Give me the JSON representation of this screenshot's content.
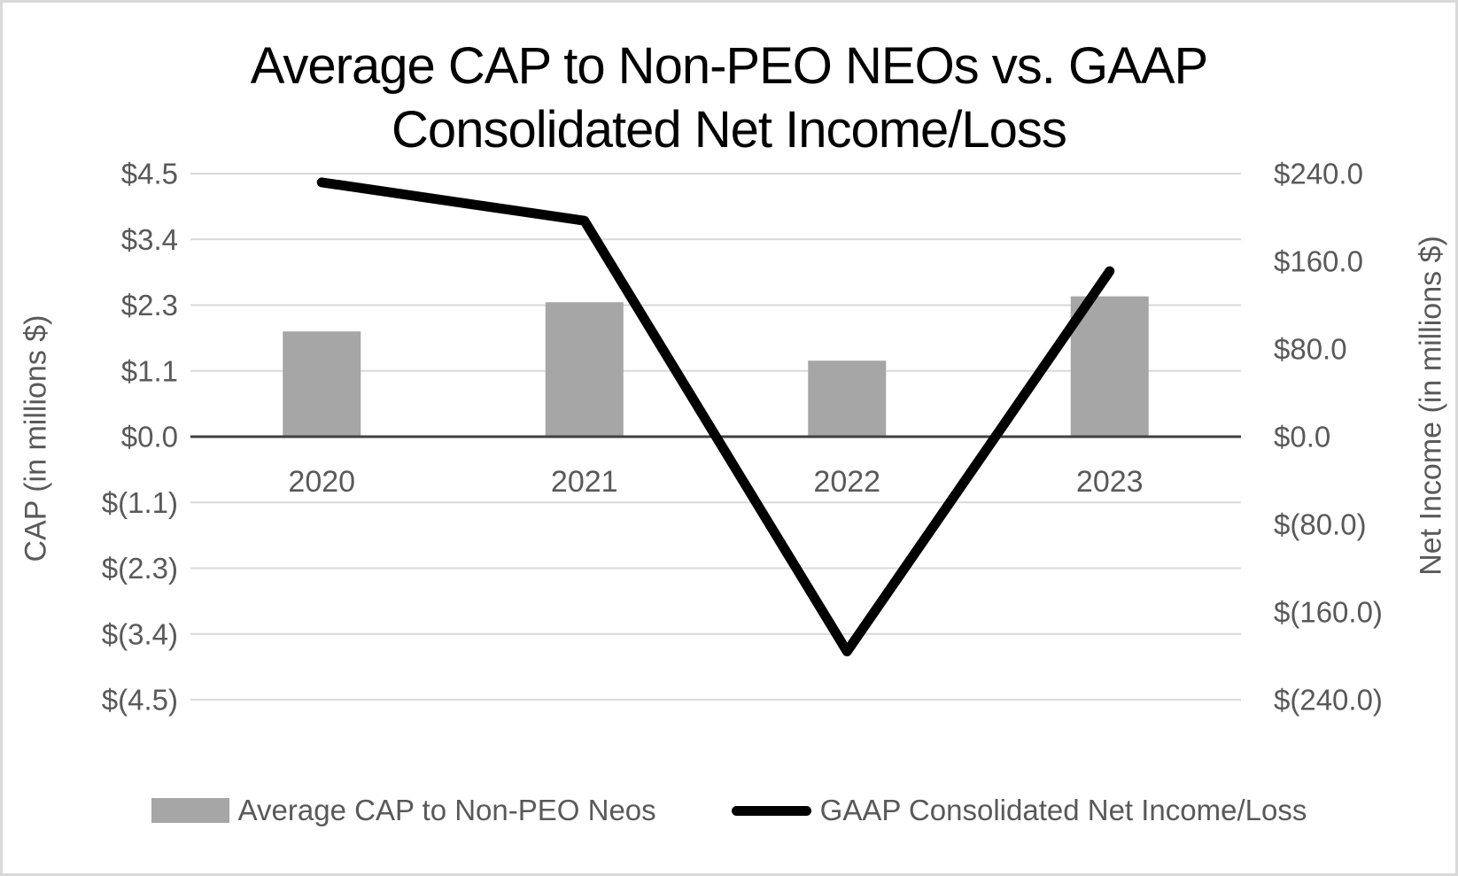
{
  "title": {
    "lines": [
      "Average CAP to Non-PEO NEOs vs. GAAP",
      "Consolidated Net Income/Loss"
    ]
  },
  "left_axis": {
    "title": "CAP (in millions $)"
  },
  "right_axis": {
    "title": "Net Income (in millions $)"
  },
  "legend": {
    "bar_label": "Average CAP to Non-PEO Neos",
    "line_label": "GAAP Consolidated Net Income/Loss"
  },
  "colors": {
    "bar": "#a6a6a6",
    "line": "#000000",
    "gridline": "#d9d9d9",
    "zero_axis": "#404040",
    "text": "#595959",
    "title_text": "#000000",
    "border": "#d9d9d9"
  },
  "chart_data": {
    "type": "combo",
    "title": "Average CAP to Non-PEO NEOs vs. GAAP Consolidated Net Income/Loss",
    "categories": [
      "2020",
      "2021",
      "2022",
      "2023"
    ],
    "series": [
      {
        "name": "Average CAP to Non-PEO Neos",
        "type": "bar",
        "axis": "left",
        "values": [
          1.8,
          2.3,
          1.3,
          2.4
        ]
      },
      {
        "name": "GAAP Consolidated Net Income/Loss",
        "type": "line",
        "axis": "right",
        "values": [
          232,
          197,
          -196,
          151
        ]
      }
    ],
    "left_ylabel": "CAP (in millions $)",
    "right_ylabel": "Net Income (in millions $)",
    "left_ylim": [
      -4.5,
      4.5
    ],
    "right_ylim": [
      -240,
      240
    ],
    "left_axis_ticks": [
      {
        "label": "$4.5",
        "value": 4.5
      },
      {
        "label": "$3.4",
        "value": 3.375
      },
      {
        "label": "$2.3",
        "value": 2.25
      },
      {
        "label": "$1.1",
        "value": 1.125
      },
      {
        "label": "$0.0",
        "value": 0
      },
      {
        "label": "$(1.1)",
        "value": -1.125
      },
      {
        "label": "$(2.3)",
        "value": -2.25
      },
      {
        "label": "$(3.4)",
        "value": -3.375
      },
      {
        "label": "$(4.5)",
        "value": -4.5
      }
    ],
    "right_axis_ticks": [
      {
        "label": "$240.0",
        "value": 240
      },
      {
        "label": "$160.0",
        "value": 160
      },
      {
        "label": "$80.0",
        "value": 80
      },
      {
        "label": "$0.0",
        "value": 0
      },
      {
        "label": "$(80.0)",
        "value": -80
      },
      {
        "label": "$(160.0)",
        "value": -160
      },
      {
        "label": "$(240.0)",
        "value": -240
      }
    ],
    "grid": true,
    "legend_position": "bottom"
  }
}
